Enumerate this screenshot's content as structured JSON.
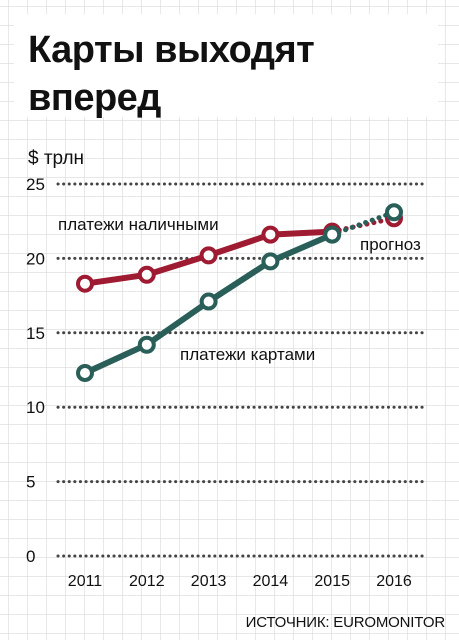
{
  "title": "Карты выходят вперед",
  "source": "ИСТОЧНИК: EUROMONITOR",
  "colors": {
    "cash": "#9e1b32",
    "cards": "#2a5e58",
    "grid": "#d9d9d9",
    "dotted": "#444444"
  },
  "chart_data": {
    "type": "line",
    "title": "Карты выходят вперед",
    "ylabel": "$ трлн",
    "xlabel": "",
    "categories": [
      "2011",
      "2012",
      "2013",
      "2014",
      "2015",
      "2016"
    ],
    "ylim": [
      0,
      25
    ],
    "yticks": [
      "0",
      "5",
      "10",
      "15",
      "20",
      "25"
    ],
    "grid": "dotted horizontal",
    "forecast_label": "прогноз",
    "forecast_from": "2015",
    "series": [
      {
        "name": "платежи наличными",
        "values": [
          18.3,
          18.9,
          20.2,
          21.6,
          21.8,
          22.7
        ],
        "color": "#9e1b32"
      },
      {
        "name": "платежи картами",
        "values": [
          12.3,
          14.2,
          17.1,
          19.8,
          21.6,
          23.1
        ],
        "color": "#2a5e58"
      }
    ]
  }
}
